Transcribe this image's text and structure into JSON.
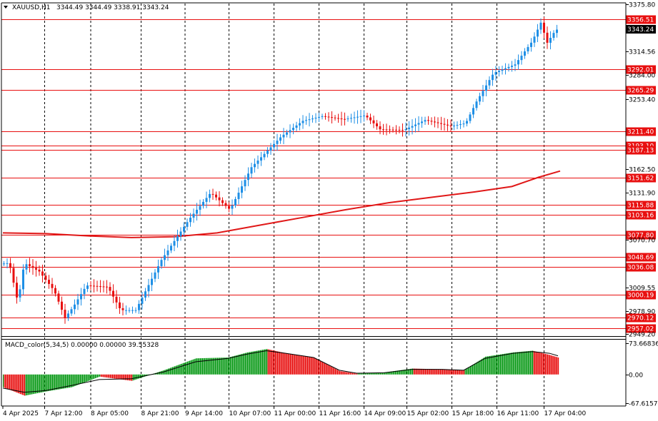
{
  "header": {
    "symbol": "XAUUSD,H1",
    "ohlc": "3344.49 3344.49 3338.91 3343.24"
  },
  "macd_header": "MACD_color(5,34,5) 0.00000 0.00000 39.55328",
  "current_price_label": "3343.24",
  "colors": {
    "bull": "#1e8fe6",
    "bear": "#e81010",
    "level": "#e81010",
    "ma": "#e01818",
    "macd_up": "#0a9a18",
    "macd_down": "#e81010",
    "signal": "#000000",
    "grid": "#000000"
  },
  "chart_data": [
    {
      "type": "candlestick",
      "title": "XAUUSD,H1",
      "ylim": [
        2949.2,
        3375.8
      ],
      "y_ticks": [
        "3375.80",
        "3314.56",
        "3284.00",
        "3253.40",
        "3162.50",
        "3131.90",
        "3070.70",
        "3009.55",
        "2978.90",
        "2949.20"
      ],
      "x_ticks": [
        "4 Apr 2025",
        "7 Apr 12:00",
        "8 Apr 05:00",
        "8 Apr 21:00",
        "9 Apr 14:00",
        "10 Apr 07:00",
        "11 Apr 00:00",
        "11 Apr 16:00",
        "14 Apr 09:00",
        "15 Apr 02:00",
        "15 Apr 18:00",
        "16 Apr 11:00",
        "17 Apr 04:00"
      ],
      "levels": [
        "3356.51",
        "3292.01",
        "3265.29",
        "3211.40",
        "3193.10",
        "3187.13",
        "3151.62",
        "3115.88",
        "3103.16",
        "3077.80",
        "3048.69",
        "3036.08",
        "3000.19",
        "2970.12",
        "2957.02"
      ],
      "moving_average": [
        [
          0,
          3080
        ],
        [
          40,
          3079
        ],
        [
          80,
          3076
        ],
        [
          120,
          3074
        ],
        [
          160,
          3075
        ],
        [
          200,
          3080
        ],
        [
          240,
          3090
        ],
        [
          280,
          3100
        ],
        [
          320,
          3110
        ],
        [
          360,
          3119
        ],
        [
          400,
          3126
        ],
        [
          440,
          3133
        ],
        [
          475,
          3140
        ],
        [
          500,
          3152
        ],
        [
          520,
          3160
        ]
      ],
      "path": [
        [
          0,
          3040
        ],
        [
          8,
          3041
        ],
        [
          16,
          2990
        ],
        [
          22,
          3041
        ],
        [
          36,
          3030
        ],
        [
          50,
          3005
        ],
        [
          60,
          2970
        ],
        [
          68,
          2985
        ],
        [
          80,
          3012
        ],
        [
          100,
          3010
        ],
        [
          112,
          2980
        ],
        [
          126,
          2980
        ],
        [
          150,
          3045
        ],
        [
          176,
          3098
        ],
        [
          196,
          3132
        ],
        [
          214,
          3110
        ],
        [
          234,
          3165
        ],
        [
          262,
          3205
        ],
        [
          282,
          3225
        ],
        [
          300,
          3231
        ],
        [
          320,
          3227
        ],
        [
          340,
          3232
        ],
        [
          354,
          3214
        ],
        [
          376,
          3213
        ],
        [
          396,
          3226
        ],
        [
          420,
          3218
        ],
        [
          434,
          3222
        ],
        [
          444,
          3250
        ],
        [
          460,
          3287
        ],
        [
          480,
          3298
        ],
        [
          496,
          3328
        ],
        [
          504,
          3352
        ],
        [
          510,
          3326
        ],
        [
          518,
          3343
        ]
      ]
    },
    {
      "type": "bar",
      "title": "MACD_color(5,34,5)",
      "ylim": [
        -67.61573,
        73.66836
      ],
      "y_ticks": [
        "73.66836",
        "0.00",
        "-67.61573"
      ],
      "histogram_path": [
        [
          0,
          -30
        ],
        [
          20,
          -50
        ],
        [
          40,
          -40
        ],
        [
          64,
          -30
        ],
        [
          90,
          -5
        ],
        [
          120,
          -15
        ],
        [
          150,
          10
        ],
        [
          180,
          38
        ],
        [
          210,
          40
        ],
        [
          228,
          52
        ],
        [
          246,
          60
        ],
        [
          264,
          50
        ],
        [
          290,
          40
        ],
        [
          314,
          8
        ],
        [
          330,
          2
        ],
        [
          356,
          5
        ],
        [
          382,
          14
        ],
        [
          410,
          12
        ],
        [
          430,
          10
        ],
        [
          450,
          42
        ],
        [
          476,
          52
        ],
        [
          494,
          56
        ],
        [
          510,
          46
        ],
        [
          518,
          40
        ]
      ],
      "signal_path": [
        [
          0,
          -32
        ],
        [
          20,
          -42
        ],
        [
          40,
          -38
        ],
        [
          64,
          -26
        ],
        [
          90,
          -12
        ],
        [
          120,
          -10
        ],
        [
          150,
          6
        ],
        [
          180,
          30
        ],
        [
          210,
          38
        ],
        [
          228,
          48
        ],
        [
          246,
          56
        ],
        [
          264,
          50
        ],
        [
          290,
          40
        ],
        [
          314,
          10
        ],
        [
          330,
          3
        ],
        [
          356,
          4
        ],
        [
          382,
          12
        ],
        [
          410,
          12
        ],
        [
          430,
          10
        ],
        [
          450,
          38
        ],
        [
          476,
          50
        ],
        [
          494,
          54
        ],
        [
          510,
          50
        ],
        [
          518,
          44
        ]
      ]
    }
  ]
}
